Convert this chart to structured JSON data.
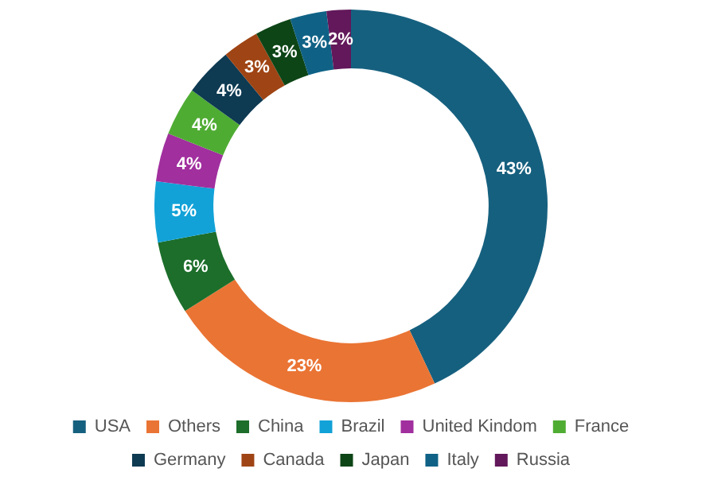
{
  "chart_data": {
    "type": "donut",
    "categories": [
      "USA",
      "Others",
      "China",
      "Brazil",
      "United Kindom",
      "France",
      "Germany",
      "Canada",
      "Japan",
      "Italy",
      "Russia"
    ],
    "values": [
      43,
      23,
      6,
      5,
      4,
      4,
      4,
      3,
      3,
      3,
      2
    ],
    "colors": [
      "#16607f",
      "#ea7434",
      "#1c6e2a",
      "#12a2d8",
      "#a12f9e",
      "#4fac33",
      "#0e3a52",
      "#9f4414",
      "#0d4516",
      "#0f6286",
      "#62185a"
    ],
    "value_labels": [
      "43%",
      "23%",
      "6%",
      "5%",
      "4%",
      "4%",
      "4%",
      "3%",
      "3%",
      "3%",
      "2%"
    ],
    "legend": "bottom"
  }
}
